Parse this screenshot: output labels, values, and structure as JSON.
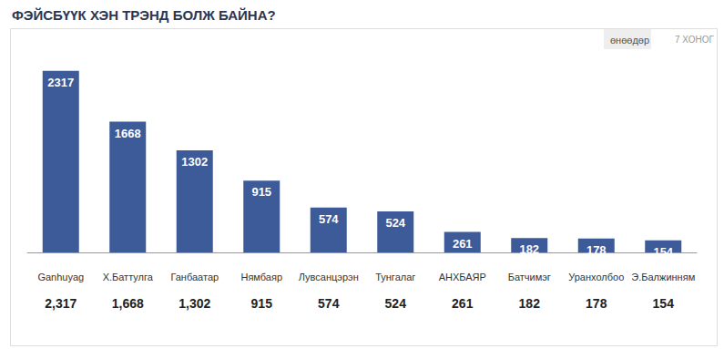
{
  "chart_data": {
    "type": "bar",
    "title": "ФЭЙСБҮҮК ХЭН ТРЭНД БОЛЖ БАЙНА?",
    "annotations": [
      "өнөөдөр",
      "7 ХОНОГ"
    ],
    "categories": [
      "Ganhuyag",
      "Х.Баттулга",
      "Ганбаатар",
      "Нямбаяр",
      "Лувсанцэрэн",
      "Тунгалаг",
      "АНХБАЯР",
      "Батчимэг",
      "Уранхолбоо",
      "Э.Балжинням"
    ],
    "values": [
      2317,
      1668,
      1302,
      915,
      574,
      524,
      261,
      182,
      178,
      154
    ],
    "value_labels": [
      "2,317",
      "1,668",
      "1,302",
      "915",
      "574",
      "524",
      "261",
      "182",
      "178",
      "154"
    ],
    "color": "#3d5a99",
    "ylim": [
      0,
      2500
    ],
    "grid": false,
    "data_labels": true,
    "tick_labels": "x"
  }
}
